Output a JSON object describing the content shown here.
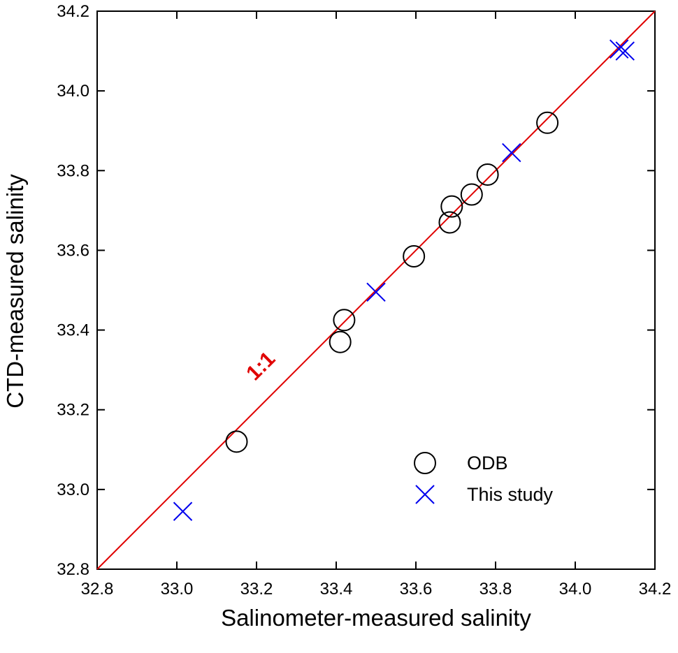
{
  "chart_data": {
    "type": "scatter",
    "title": "",
    "xlabel": "Salinometer-measured salinity",
    "ylabel": "CTD-measured salinity",
    "xlim": [
      32.8,
      34.2
    ],
    "ylim": [
      32.8,
      34.2
    ],
    "xticks": [
      32.8,
      33.0,
      33.2,
      33.4,
      33.6,
      33.8,
      34.0,
      34.2
    ],
    "yticks": [
      32.8,
      33.0,
      33.2,
      33.4,
      33.6,
      33.8,
      34.0,
      34.2
    ],
    "x_tick_labels": [
      "32.8",
      "33.0",
      "33.2",
      "33.4",
      "33.6",
      "33.8",
      "34.0",
      "34.2"
    ],
    "y_tick_labels": [
      "32.8",
      "33.0",
      "33.2",
      "33.4",
      "33.6",
      "33.8",
      "34.0",
      "34.2"
    ],
    "grid": false,
    "legend_position": "bottom-right",
    "reference_line": {
      "label": "1:1",
      "slope": 1,
      "intercept": 0,
      "color": "#e00000"
    },
    "series": [
      {
        "name": "ODB",
        "marker": "circle",
        "color": "#000000",
        "points": [
          {
            "x": 33.15,
            "y": 33.12
          },
          {
            "x": 33.41,
            "y": 33.37
          },
          {
            "x": 33.42,
            "y": 33.425
          },
          {
            "x": 33.595,
            "y": 33.585
          },
          {
            "x": 33.685,
            "y": 33.67
          },
          {
            "x": 33.69,
            "y": 33.71
          },
          {
            "x": 33.74,
            "y": 33.74
          },
          {
            "x": 33.78,
            "y": 33.79
          },
          {
            "x": 33.93,
            "y": 33.92
          }
        ]
      },
      {
        "name": "This study",
        "marker": "x",
        "color": "#0000ee",
        "points": [
          {
            "x": 33.015,
            "y": 32.945
          },
          {
            "x": 33.5,
            "y": 33.495
          },
          {
            "x": 33.84,
            "y": 33.845
          },
          {
            "x": 34.11,
            "y": 34.105
          },
          {
            "x": 34.125,
            "y": 34.1
          }
        ]
      }
    ]
  }
}
